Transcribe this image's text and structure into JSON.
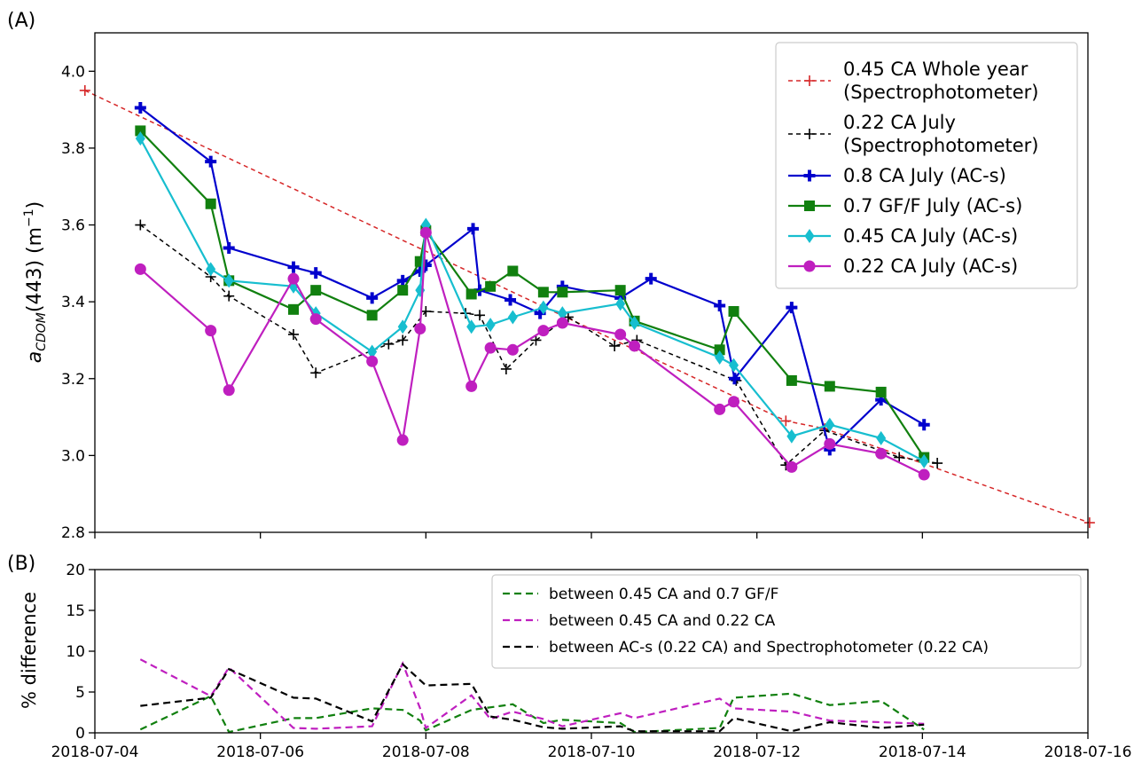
{
  "chart_data": [
    {
      "panel_label": "(A)",
      "type": "line",
      "ylabel_main": "a",
      "ylabel_sub": "CDOM",
      "ylabel_rest": "(443) (m",
      "ylabel_sup": "−1",
      "ylabel_close": ")",
      "ylim": [
        2.8,
        4.1
      ],
      "yticks": [
        "2.8",
        "3.0",
        "3.2",
        "3.4",
        "3.6",
        "3.8",
        "4.0"
      ],
      "xlim": [
        "2018-07-04",
        "2018-07-16"
      ],
      "grid": false,
      "legend_position": "top-right",
      "series": [
        {
          "name_lines": [
            "0.45 CA Whole year",
            "(Spectrophotometer)"
          ],
          "color": "#d62728",
          "dash": "dashed",
          "marker": "plus",
          "points": [
            [
              "2018-07-03.88",
              3.95
            ],
            [
              "2018-07-12.35",
              3.09
            ],
            [
              "2018-07-12.82",
              3.07
            ],
            [
              "2018-07-16.02",
              2.825
            ]
          ]
        },
        {
          "name_lines": [
            "0.22 CA July",
            "(Spectrophotometer)"
          ],
          "color": "#000000",
          "dash": "dashed",
          "marker": "plus",
          "points": [
            [
              "2018-07-04.55",
              3.6
            ],
            [
              "2018-07-05.40",
              3.465
            ],
            [
              "2018-07-05.62",
              3.415
            ],
            [
              "2018-07-06.40",
              3.315
            ],
            [
              "2018-07-06.67",
              3.215
            ],
            [
              "2018-07-07.55",
              3.29
            ],
            [
              "2018-07-07.72",
              3.3
            ],
            [
              "2018-07-08.00",
              3.375
            ],
            [
              "2018-07-08.48",
              3.37
            ],
            [
              "2018-07-08.65",
              3.365
            ],
            [
              "2018-07-08.97",
              3.225
            ],
            [
              "2018-07-09.33",
              3.3
            ],
            [
              "2018-07-09.72",
              3.36
            ],
            [
              "2018-07-10.28",
              3.285
            ],
            [
              "2018-07-10.55",
              3.3
            ],
            [
              "2018-07-11.75",
              3.195
            ],
            [
              "2018-07-12.35",
              2.975
            ],
            [
              "2018-07-12.82",
              3.065
            ],
            [
              "2018-07-13.72",
              2.995
            ],
            [
              "2018-07-14.18",
              2.98
            ]
          ]
        },
        {
          "name_lines": [
            "0.8 CA July (AC-s)"
          ],
          "color": "#0000cd",
          "dash": "solid",
          "marker": "plus-bold",
          "points": [
            [
              "2018-07-04.55",
              3.905
            ],
            [
              "2018-07-05.40",
              3.765
            ],
            [
              "2018-07-05.62",
              3.54
            ],
            [
              "2018-07-06.40",
              3.49
            ],
            [
              "2018-07-06.67",
              3.475
            ],
            [
              "2018-07-07.35",
              3.41
            ],
            [
              "2018-07-07.72",
              3.455
            ],
            [
              "2018-07-07.93",
              3.48
            ],
            [
              "2018-07-08.00",
              3.495
            ],
            [
              "2018-07-08.57",
              3.59
            ],
            [
              "2018-07-08.65",
              3.43
            ],
            [
              "2018-07-09.02",
              3.405
            ],
            [
              "2018-07-09.38",
              3.37
            ],
            [
              "2018-07-09.65",
              3.44
            ],
            [
              "2018-07-10.35",
              3.41
            ],
            [
              "2018-07-10.72",
              3.46
            ],
            [
              "2018-07-11.55",
              3.39
            ],
            [
              "2018-07-11.73",
              3.2
            ],
            [
              "2018-07-12.42",
              3.385
            ],
            [
              "2018-07-12.88",
              3.015
            ],
            [
              "2018-07-13.50",
              3.145
            ],
            [
              "2018-07-14.02",
              3.08
            ]
          ]
        },
        {
          "name_lines": [
            "0.7 GF/F July (AC-s)"
          ],
          "color": "#11800f",
          "dash": "solid",
          "marker": "square",
          "points": [
            [
              "2018-07-04.55",
              3.845
            ],
            [
              "2018-07-05.40",
              3.655
            ],
            [
              "2018-07-05.62",
              3.455
            ],
            [
              "2018-07-06.40",
              3.38
            ],
            [
              "2018-07-06.67",
              3.43
            ],
            [
              "2018-07-07.35",
              3.365
            ],
            [
              "2018-07-07.72",
              3.43
            ],
            [
              "2018-07-07.93",
              3.505
            ],
            [
              "2018-07-08.00",
              3.585
            ],
            [
              "2018-07-08.55",
              3.42
            ],
            [
              "2018-07-08.78",
              3.44
            ],
            [
              "2018-07-09.05",
              3.48
            ],
            [
              "2018-07-09.42",
              3.425
            ],
            [
              "2018-07-09.65",
              3.425
            ],
            [
              "2018-07-10.35",
              3.43
            ],
            [
              "2018-07-10.52",
              3.35
            ],
            [
              "2018-07-11.55",
              3.275
            ],
            [
              "2018-07-11.72",
              3.375
            ],
            [
              "2018-07-12.42",
              3.195
            ],
            [
              "2018-07-12.88",
              3.18
            ],
            [
              "2018-07-13.50",
              3.165
            ],
            [
              "2018-07-14.02",
              2.995
            ]
          ]
        },
        {
          "name_lines": [
            "0.45 CA July (AC-s)"
          ],
          "color": "#17becf",
          "dash": "solid",
          "marker": "diamond",
          "points": [
            [
              "2018-07-04.55",
              3.825
            ],
            [
              "2018-07-05.40",
              3.485
            ],
            [
              "2018-07-05.62",
              3.455
            ],
            [
              "2018-07-06.40",
              3.44
            ],
            [
              "2018-07-06.67",
              3.37
            ],
            [
              "2018-07-07.35",
              3.27
            ],
            [
              "2018-07-07.72",
              3.335
            ],
            [
              "2018-07-07.93",
              3.43
            ],
            [
              "2018-07-08.00",
              3.6
            ],
            [
              "2018-07-08.55",
              3.335
            ],
            [
              "2018-07-08.78",
              3.34
            ],
            [
              "2018-07-09.05",
              3.36
            ],
            [
              "2018-07-09.42",
              3.385
            ],
            [
              "2018-07-09.65",
              3.37
            ],
            [
              "2018-07-10.35",
              3.395
            ],
            [
              "2018-07-10.52",
              3.345
            ],
            [
              "2018-07-11.55",
              3.255
            ],
            [
              "2018-07-11.72",
              3.235
            ],
            [
              "2018-07-12.42",
              3.05
            ],
            [
              "2018-07-12.88",
              3.08
            ],
            [
              "2018-07-13.50",
              3.045
            ],
            [
              "2018-07-14.02",
              2.985
            ]
          ]
        },
        {
          "name_lines": [
            "0.22 CA July (AC-s)"
          ],
          "color": "#bf1fbf",
          "dash": "solid",
          "marker": "circle",
          "points": [
            [
              "2018-07-04.55",
              3.485
            ],
            [
              "2018-07-05.40",
              3.325
            ],
            [
              "2018-07-05.62",
              3.17
            ],
            [
              "2018-07-06.40",
              3.46
            ],
            [
              "2018-07-06.67",
              3.355
            ],
            [
              "2018-07-07.35",
              3.245
            ],
            [
              "2018-07-07.72",
              3.04
            ],
            [
              "2018-07-07.93",
              3.33
            ],
            [
              "2018-07-08.00",
              3.58
            ],
            [
              "2018-07-08.55",
              3.18
            ],
            [
              "2018-07-08.78",
              3.28
            ],
            [
              "2018-07-09.05",
              3.275
            ],
            [
              "2018-07-09.42",
              3.325
            ],
            [
              "2018-07-09.65",
              3.345
            ],
            [
              "2018-07-10.35",
              3.315
            ],
            [
              "2018-07-10.52",
              3.285
            ],
            [
              "2018-07-11.55",
              3.12
            ],
            [
              "2018-07-11.72",
              3.14
            ],
            [
              "2018-07-12.42",
              2.97
            ],
            [
              "2018-07-12.88",
              3.03
            ],
            [
              "2018-07-13.50",
              3.005
            ],
            [
              "2018-07-14.02",
              2.95
            ]
          ]
        }
      ]
    },
    {
      "panel_label": "(B)",
      "type": "line",
      "ylabel": "% difference",
      "ylim": [
        0,
        20
      ],
      "yticks": [
        "0",
        "5",
        "10",
        "15",
        "20"
      ],
      "xlim": [
        "2018-07-04",
        "2018-07-16"
      ],
      "xticks": [
        "2018-07-04",
        "2018-07-06",
        "2018-07-08",
        "2018-07-10",
        "2018-07-12",
        "2018-07-14",
        "2018-07-16"
      ],
      "grid": false,
      "legend_position": "top-right",
      "series": [
        {
          "name": "between 0.45 CA and 0.7 GF/F",
          "color": "#11800f",
          "dash": "dashed",
          "points": [
            [
              "2018-07-04.55",
              0.4
            ],
            [
              "2018-07-05.40",
              4.5
            ],
            [
              "2018-07-05.62",
              0.1
            ],
            [
              "2018-07-06.40",
              1.8
            ],
            [
              "2018-07-06.67",
              1.8
            ],
            [
              "2018-07-07.35",
              3.0
            ],
            [
              "2018-07-07.72",
              2.8
            ],
            [
              "2018-07-07.93",
              1.5
            ],
            [
              "2018-07-08.00",
              0.3
            ],
            [
              "2018-07-08.55",
              2.8
            ],
            [
              "2018-07-09.05",
              3.5
            ],
            [
              "2018-07-09.42",
              1.2
            ],
            [
              "2018-07-09.65",
              1.6
            ],
            [
              "2018-07-10.35",
              1.2
            ],
            [
              "2018-07-10.52",
              0.1
            ],
            [
              "2018-07-11.55",
              0.6
            ],
            [
              "2018-07-11.72",
              4.3
            ],
            [
              "2018-07-12.42",
              4.8
            ],
            [
              "2018-07-12.88",
              3.4
            ],
            [
              "2018-07-13.50",
              3.9
            ],
            [
              "2018-07-14.02",
              0.4
            ]
          ]
        },
        {
          "name": "between 0.45 CA and 0.22 CA",
          "color": "#bf1fbf",
          "dash": "dashed",
          "points": [
            [
              "2018-07-04.55",
              9.0
            ],
            [
              "2018-07-05.40",
              4.5
            ],
            [
              "2018-07-05.62",
              8.0
            ],
            [
              "2018-07-06.40",
              0.6
            ],
            [
              "2018-07-06.67",
              0.5
            ],
            [
              "2018-07-07.35",
              0.8
            ],
            [
              "2018-07-07.72",
              8.5
            ],
            [
              "2018-07-07.93",
              3.0
            ],
            [
              "2018-07-08.00",
              0.6
            ],
            [
              "2018-07-08.55",
              4.6
            ],
            [
              "2018-07-08.78",
              1.7
            ],
            [
              "2018-07-09.05",
              2.6
            ],
            [
              "2018-07-09.42",
              1.7
            ],
            [
              "2018-07-09.65",
              0.8
            ],
            [
              "2018-07-10.35",
              2.4
            ],
            [
              "2018-07-10.52",
              1.8
            ],
            [
              "2018-07-11.55",
              4.2
            ],
            [
              "2018-07-11.72",
              3.0
            ],
            [
              "2018-07-12.42",
              2.6
            ],
            [
              "2018-07-12.88",
              1.5
            ],
            [
              "2018-07-13.50",
              1.3
            ],
            [
              "2018-07-14.02",
              1.1
            ]
          ]
        },
        {
          "name": "between AC-s (0.22 CA) and Spectrophotometer (0.22 CA)",
          "color": "#000000",
          "dash": "dashed",
          "points": [
            [
              "2018-07-04.55",
              3.3
            ],
            [
              "2018-07-05.40",
              4.3
            ],
            [
              "2018-07-05.62",
              7.8
            ],
            [
              "2018-07-06.40",
              4.3
            ],
            [
              "2018-07-06.67",
              4.2
            ],
            [
              "2018-07-07.35",
              1.4
            ],
            [
              "2018-07-07.72",
              8.4
            ],
            [
              "2018-07-08.00",
              5.8
            ],
            [
              "2018-07-08.55",
              6.0
            ],
            [
              "2018-07-08.78",
              2.0
            ],
            [
              "2018-07-09.05",
              1.6
            ],
            [
              "2018-07-09.42",
              0.7
            ],
            [
              "2018-07-09.65",
              0.5
            ],
            [
              "2018-07-10.35",
              0.8
            ],
            [
              "2018-07-10.52",
              0.2
            ],
            [
              "2018-07-11.55",
              0.2
            ],
            [
              "2018-07-11.72",
              1.8
            ],
            [
              "2018-07-12.42",
              0.2
            ],
            [
              "2018-07-12.88",
              1.3
            ],
            [
              "2018-07-13.50",
              0.6
            ],
            [
              "2018-07-14.02",
              1.0
            ]
          ]
        }
      ]
    }
  ]
}
